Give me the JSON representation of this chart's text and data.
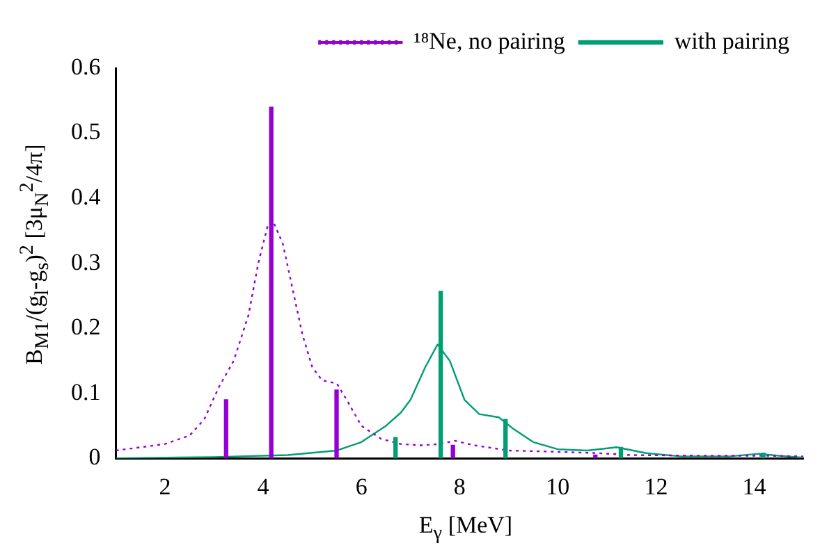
{
  "chart_data": {
    "type": "line",
    "xlabel": "E$_{γ}$ [MeV]",
    "ylabel": "B$_{M1}$/(g$_{l}$-g$_{s}$)$^{2}$  [3μ$_{N}$$^{2}$/4π]",
    "xlim": [
      1,
      15
    ],
    "xticks": [
      2,
      4,
      6,
      8,
      10,
      12,
      14
    ],
    "ylim": [
      0,
      0.6
    ],
    "yticks": [
      0,
      0.1,
      0.2,
      0.3,
      0.4,
      0.5,
      0.6
    ],
    "grid": false,
    "legend": "top right",
    "marker": "none",
    "series": [
      {
        "name": "¹⁸Ne, no pairing",
        "line_style": "dotted",
        "color": "#9400d3",
        "x": [
          1,
          2,
          2.5,
          2.8,
          3.1,
          3.4,
          3.7,
          3.9,
          4.1,
          4.2,
          4.4,
          4.6,
          4.8,
          5,
          5.2,
          5.5,
          5.7,
          6,
          6.4,
          6.8,
          7.2,
          7.6,
          7.9,
          8.3,
          9,
          10,
          10.8,
          11.5,
          13,
          14.2,
          15
        ],
        "values": [
          0.012,
          0.022,
          0.035,
          0.06,
          0.11,
          0.15,
          0.22,
          0.3,
          0.36,
          0.365,
          0.33,
          0.26,
          0.19,
          0.14,
          0.12,
          0.115,
          0.09,
          0.05,
          0.03,
          0.022,
          0.02,
          0.022,
          0.027,
          0.02,
          0.012,
          0.01,
          0.008,
          0.005,
          0.004,
          0.004,
          0.003
        ]
      },
      {
        "name": "with pairing",
        "line_style": "solid",
        "color": "#009e73",
        "x": [
          1,
          3,
          4.5,
          5.5,
          6,
          6.5,
          6.8,
          7,
          7.3,
          7.55,
          7.8,
          8.1,
          8.4,
          8.8,
          9.1,
          9.5,
          10,
          10.6,
          11.2,
          11.8,
          12.5,
          13.5,
          14.1,
          14.5,
          15
        ],
        "values": [
          0,
          0.002,
          0.005,
          0.012,
          0.025,
          0.05,
          0.07,
          0.09,
          0.14,
          0.175,
          0.15,
          0.09,
          0.068,
          0.063,
          0.045,
          0.025,
          0.014,
          0.012,
          0.017,
          0.008,
          0.003,
          0.003,
          0.007,
          0.004,
          0.001
        ]
      },
      {
        "type": "bar",
        "color": "#9400d3",
        "x": [
          3.28,
          4.2,
          5.53,
          7.9,
          10.8
        ],
        "values": [
          0.09,
          0.54,
          0.105,
          0.02,
          0.005
        ]
      },
      {
        "type": "bar",
        "color": "#009e73",
        "x": [
          6.66,
          7.58,
          8.9,
          11.25,
          14.15
        ],
        "values": [
          0.032,
          0.257,
          0.06,
          0.017,
          0.008
        ]
      }
    ]
  }
}
